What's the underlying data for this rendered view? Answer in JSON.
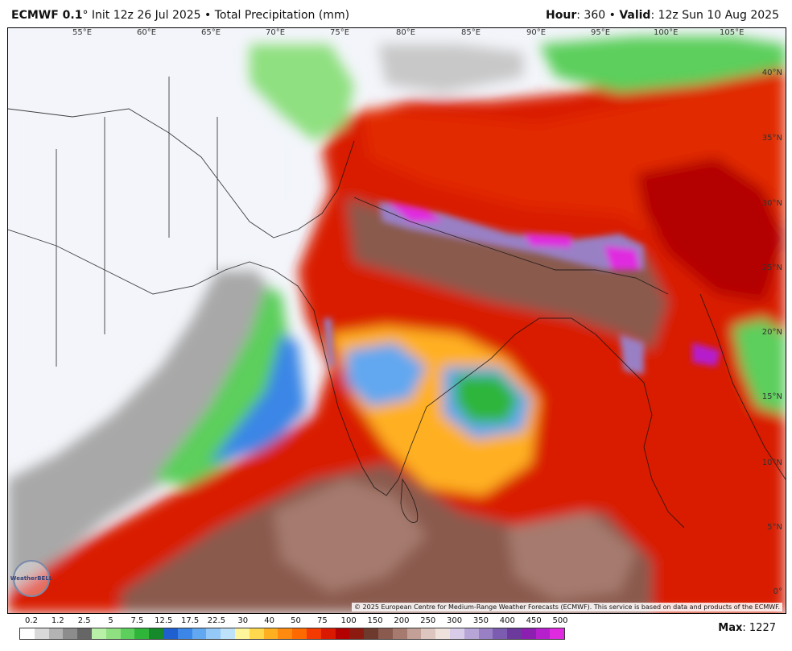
{
  "header": {
    "model": "ECMWF 0.1",
    "degree_mark": "°",
    "init_text": " Init 12z 26 Jul 2025 • Total Precipitation (mm)",
    "hour_label": "Hour",
    "hour_value": ": 360 • ",
    "valid_label": "Valid",
    "valid_value": ": 12z Sun 10 Aug 2025"
  },
  "map": {
    "lon_labels": [
      "55°E",
      "60°E",
      "65°E",
      "70°E",
      "75°E",
      "80°E",
      "85°E",
      "90°E",
      "95°E",
      "100°E",
      "105°E"
    ],
    "lat_labels": [
      "40°N",
      "35°N",
      "30°N",
      "25°N",
      "20°N",
      "15°N",
      "10°N",
      "5°N",
      "0°"
    ],
    "credit": "© 2025 European Centre for Medium-Range Weather Forecasts (ECMWF). This service is based on data and products of the ECMWF.",
    "logo_text": "WeatherBELL"
  },
  "legend": {
    "labels": [
      "0.2",
      "1.2",
      "2.5",
      "5",
      "7.5",
      "12.5",
      "17.5",
      "22.5",
      "30",
      "40",
      "50",
      "75",
      "100",
      "150",
      "200",
      "250",
      "300",
      "350",
      "400",
      "450",
      "500"
    ],
    "colors": [
      "#ffffff",
      "#d9d9d9",
      "#b3b3b3",
      "#8c8c8c",
      "#666666",
      "#b8f0a8",
      "#8fe080",
      "#5ccf5c",
      "#2fb53a",
      "#168a2a",
      "#1f5fd0",
      "#3b86e6",
      "#62a8f0",
      "#93c8f7",
      "#bfe2fb",
      "#fff59a",
      "#ffd84d",
      "#ffb020",
      "#ff8a10",
      "#ff6a00",
      "#f43a00",
      "#d91a00",
      "#b30000",
      "#8c1a10",
      "#6e3a2e",
      "#8a5a4e",
      "#a67a6e",
      "#c2a098",
      "#ddc6bf",
      "#efe2dc",
      "#d8cce8",
      "#b8a5d8",
      "#9980c5",
      "#7b5cb0",
      "#6b3a9c",
      "#8c1fb0",
      "#b51fcc",
      "#e02ae0"
    ],
    "max_label": "Max",
    "max_value": ": 1227"
  }
}
